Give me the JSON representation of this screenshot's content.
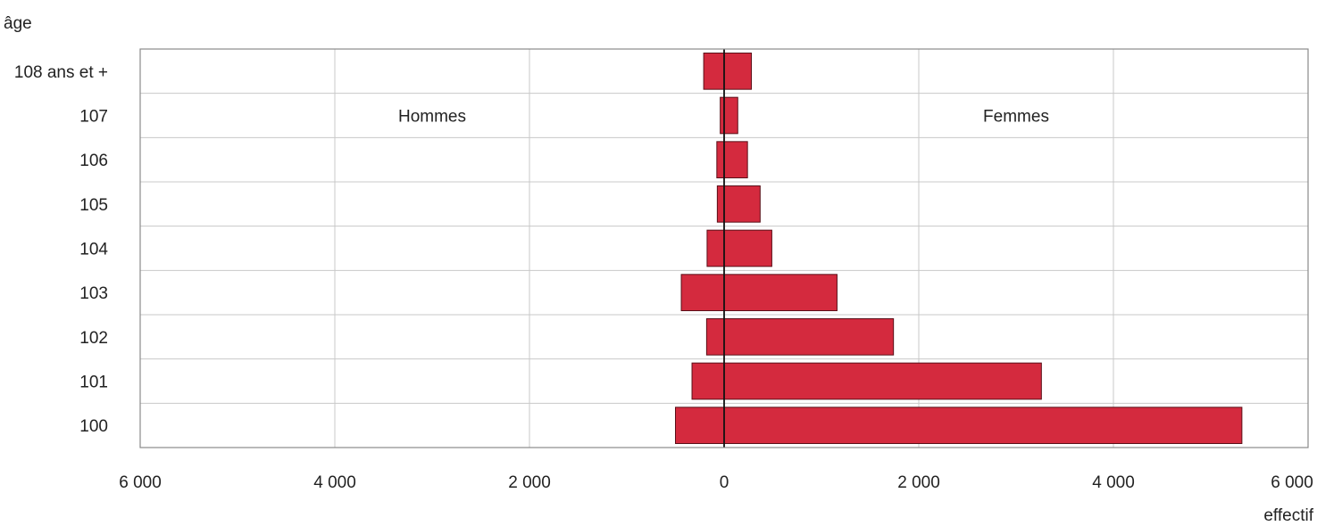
{
  "chart_data": {
    "type": "bar",
    "orientation": "horizontal",
    "ylabel": "âge",
    "xlabel": "effectif",
    "categories": [
      "108 ans et +",
      "107",
      "106",
      "105",
      "104",
      "103",
      "102",
      "101",
      "100"
    ],
    "series": [
      {
        "name": "Hommes",
        "side": "left",
        "values": [
          210,
          40,
          75,
          70,
          175,
          440,
          180,
          330,
          500
        ]
      },
      {
        "name": "Femmes",
        "side": "right",
        "values": [
          280,
          140,
          240,
          370,
          490,
          1160,
          1740,
          3260,
          5320
        ]
      }
    ],
    "xlim": [
      -6000,
      6000
    ],
    "xticks": [
      -6000,
      -4000,
      -2000,
      0,
      2000,
      4000,
      6000
    ],
    "xtick_labels": [
      "6 000",
      "4 000",
      "2 000",
      "0",
      "2 000",
      "4 000",
      "6 000"
    ],
    "grid": true,
    "bar_color": "#d42a3e"
  }
}
